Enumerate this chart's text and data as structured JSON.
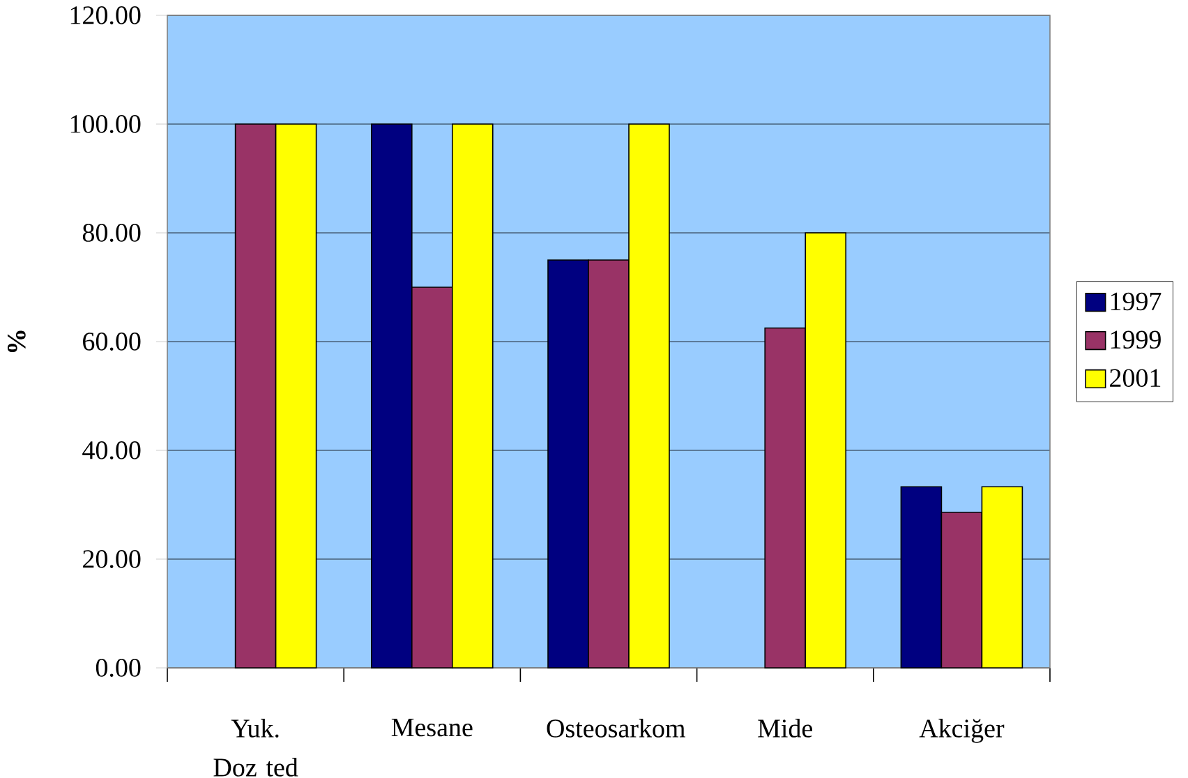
{
  "chart_data": {
    "type": "bar",
    "ylabel": "%",
    "categories": [
      "Yuk. Doz ted",
      "Mesane",
      "Osteosarkom",
      "Mide",
      "Akciğer"
    ],
    "series": [
      {
        "name": "1997",
        "color": "#000080",
        "values": [
          null,
          100,
          75,
          null,
          33.3
        ]
      },
      {
        "name": "1999",
        "color": "#993366",
        "values": [
          100,
          70,
          75,
          62.5,
          28.6
        ]
      },
      {
        "name": "2001",
        "color": "#ffff00",
        "values": [
          100,
          100,
          100,
          80,
          33.3
        ]
      }
    ],
    "ylim": [
      0,
      120
    ],
    "yticks": [
      {
        "value": 0,
        "label": "0.00"
      },
      {
        "value": 20,
        "label": "20.00"
      },
      {
        "value": 40,
        "label": "40.00"
      },
      {
        "value": 60,
        "label": "60.00"
      },
      {
        "value": 80,
        "label": "80.00"
      },
      {
        "value": 100,
        "label": "100.00"
      },
      {
        "value": 120,
        "label": "120.00"
      }
    ],
    "grid": "y",
    "legend": "right"
  }
}
